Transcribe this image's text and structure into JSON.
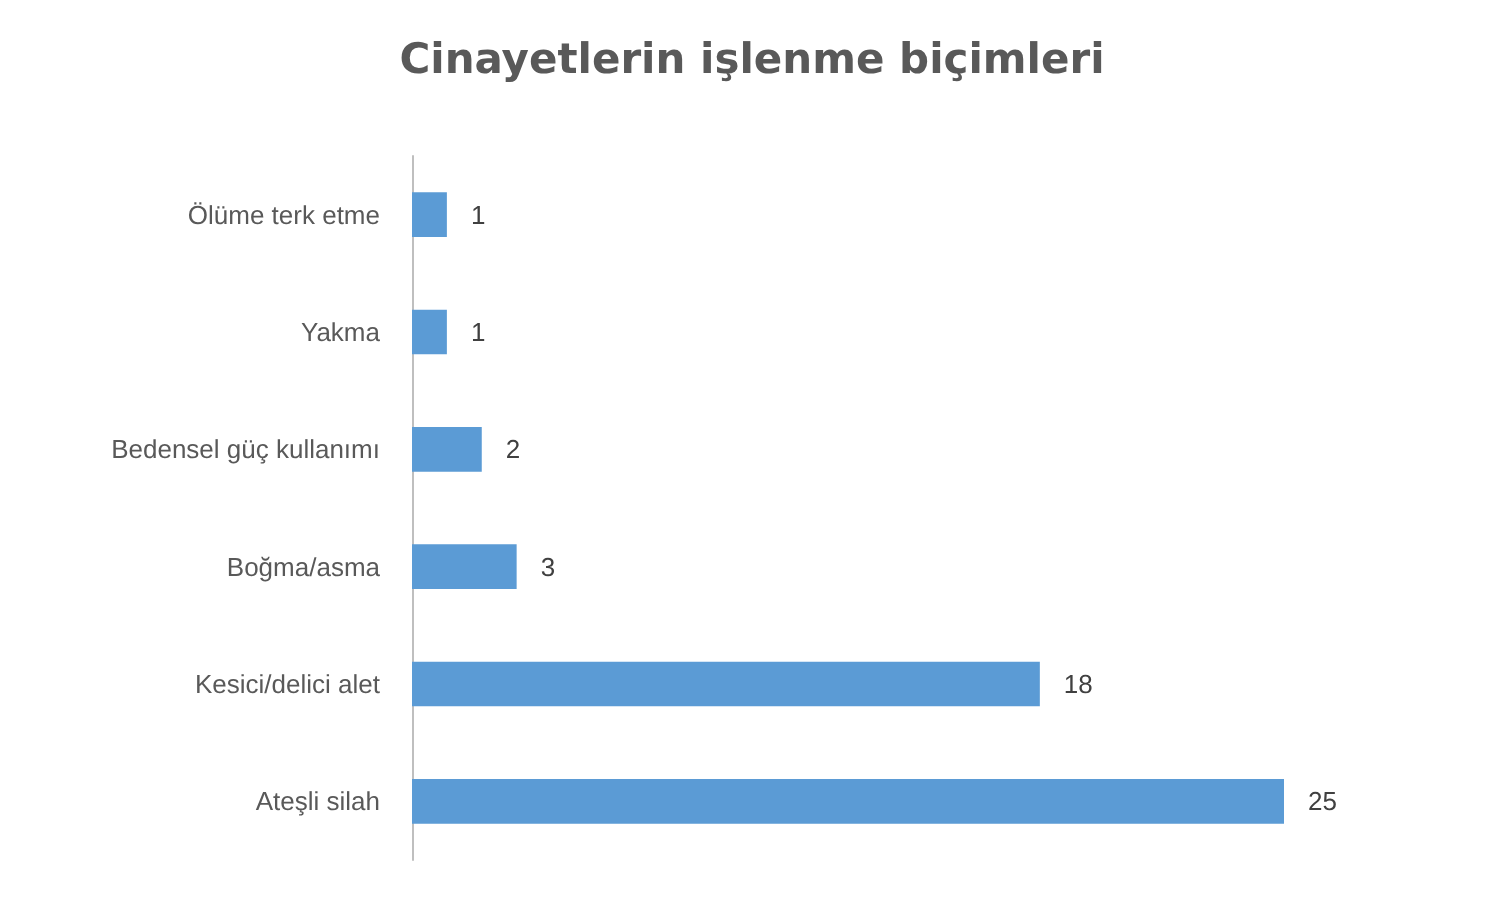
{
  "chart_data": {
    "type": "bar",
    "orientation": "horizontal",
    "title": "Cinayetlerin işlenme biçimleri",
    "categories": [
      "Ölüme terk etme",
      "Yakma",
      "Bedensel güç kullanımı",
      "Boğma/asma",
      "Kesici/delici alet",
      "Ateşli silah"
    ],
    "values": [
      1,
      1,
      2,
      3,
      18,
      25
    ],
    "color": "#5b9bd5",
    "data_labels": true,
    "grid": false
  }
}
